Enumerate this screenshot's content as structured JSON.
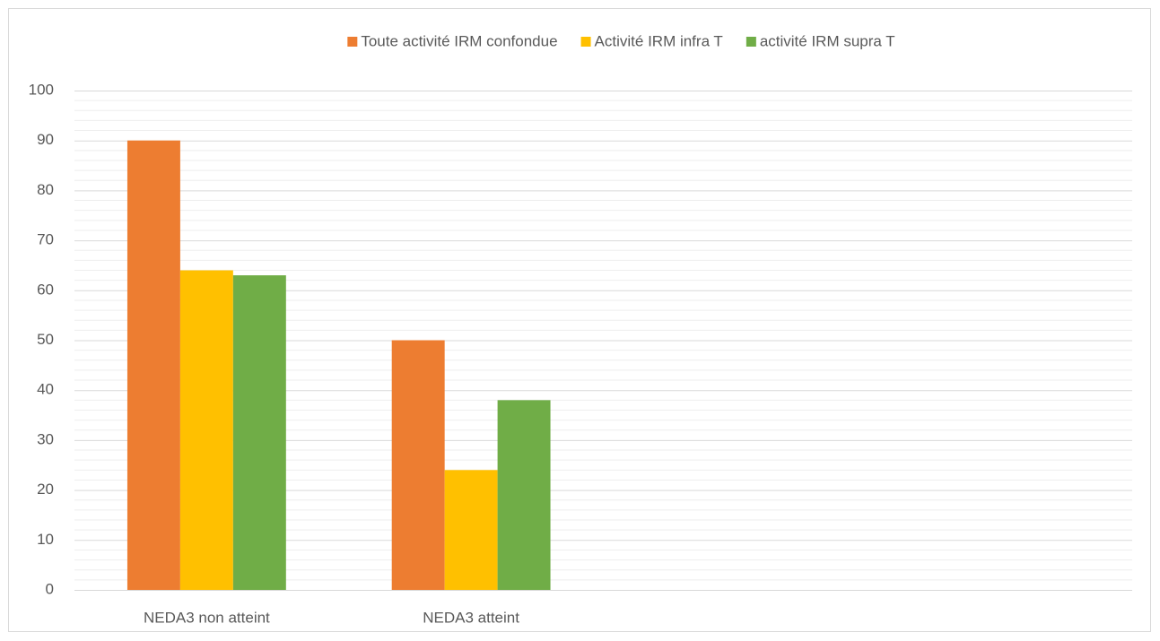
{
  "chart_data": {
    "type": "bar",
    "categories": [
      "NEDA3 non atteint",
      "NEDA3 atteint",
      null,
      null
    ],
    "series": [
      {
        "name": "Toute activité IRM confondue",
        "color": "#ed7d31",
        "values": [
          90,
          50,
          null,
          null
        ]
      },
      {
        "name": "Activité IRM infra T",
        "color": "#ffc000",
        "values": [
          64,
          24,
          null,
          null
        ]
      },
      {
        "name": "activité IRM supra T",
        "color": "#70ad47",
        "values": [
          63,
          38,
          null,
          null
        ]
      }
    ],
    "ylim": [
      0,
      100
    ],
    "yticks": [
      0,
      10,
      20,
      30,
      40,
      50,
      60,
      70,
      80,
      90,
      100
    ],
    "grid": true,
    "minor_grid": true,
    "legend": "top"
  }
}
